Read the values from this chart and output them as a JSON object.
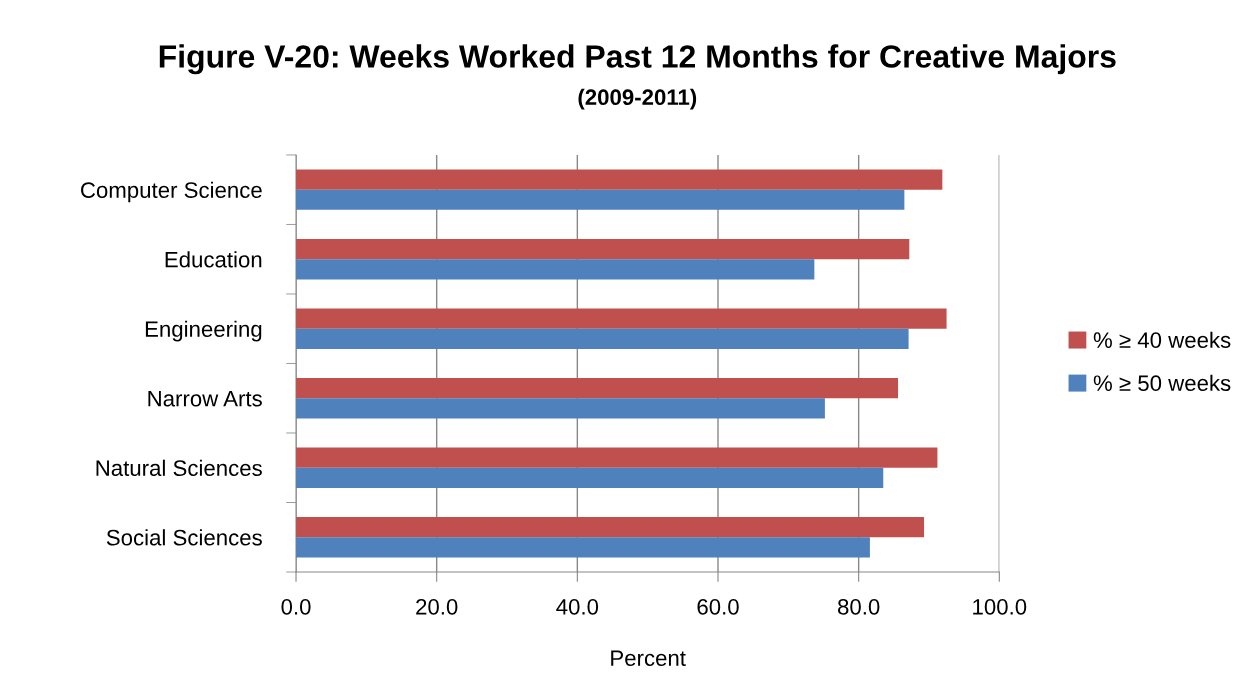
{
  "chart_data": {
    "type": "bar",
    "orientation": "horizontal",
    "title": "Figure V-20: Weeks Worked Past 12 Months for Creative Majors",
    "subtitle": "(2009-2011)",
    "xlabel": "Percent",
    "categories": [
      "Computer Science",
      "Education",
      "Engineering",
      "Narrow Arts",
      "Natural Sciences",
      "Social Sciences"
    ],
    "series": [
      {
        "name": "% ≥ 40 weeks",
        "color": "#c0504d",
        "values": [
          91.9,
          87.2,
          92.5,
          85.6,
          91.2,
          89.3
        ]
      },
      {
        "name": "% ≥ 50 weeks",
        "color": "#4f81bd",
        "values": [
          86.5,
          73.7,
          87.1,
          75.2,
          83.5,
          81.6
        ]
      }
    ],
    "xlim": [
      0,
      100
    ],
    "xticks": [
      {
        "value": 0,
        "label": "0.0"
      },
      {
        "value": 20,
        "label": "20.0"
      },
      {
        "value": 40,
        "label": "40.0"
      },
      {
        "value": 60,
        "label": "60.0"
      },
      {
        "value": 80,
        "label": "80.0"
      },
      {
        "value": 100,
        "label": "100.0"
      }
    ],
    "grid": "x",
    "legend": "right"
  }
}
